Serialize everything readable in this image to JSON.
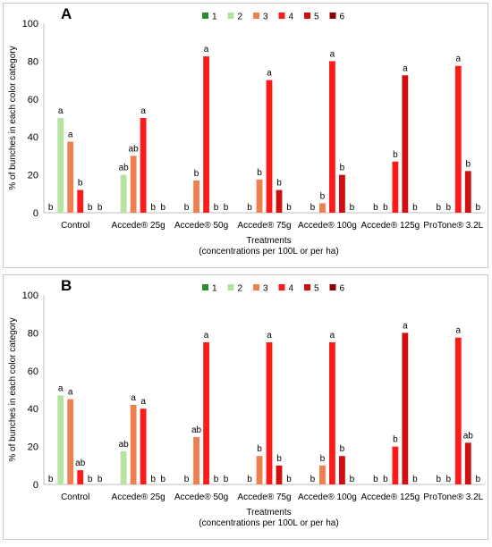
{
  "colors": {
    "1": "#2e8b2e",
    "2": "#b5e3a0",
    "3": "#f07f50",
    "4": "#ff1a1a",
    "5": "#d01010",
    "6": "#8b0000"
  },
  "chart_data": [
    {
      "type": "bar",
      "panel_label": "A",
      "title": "",
      "categories": [
        "Control",
        "Accede® 25g",
        "Accede® 50g",
        "Accede® 75g",
        "Accede® 100g",
        "Accede® 125g",
        "ProTone® 3.2L"
      ],
      "xlabel": "Treatments",
      "xlabel_sub": "(concentrations per 100L or per ha)",
      "ylabel": "% of bunches  in each color category",
      "ylim": [
        0,
        100
      ],
      "yticks": [
        0,
        20,
        40,
        60,
        80,
        100
      ],
      "legend_position": "top",
      "series": [
        {
          "name": "1",
          "values": [
            0,
            0,
            0,
            0,
            0,
            0,
            0
          ],
          "labels": [
            "b",
            "",
            "",
            "",
            "",
            "",
            ""
          ]
        },
        {
          "name": "2",
          "values": [
            50,
            20,
            0,
            0,
            0,
            0,
            0
          ],
          "labels": [
            "a",
            "ab",
            "b",
            "b",
            "b",
            "b",
            "b"
          ]
        },
        {
          "name": "3",
          "values": [
            37.5,
            30,
            17,
            17.5,
            5,
            0,
            0
          ],
          "labels": [
            "a",
            "ab",
            "b",
            "b",
            "b",
            "b",
            "b"
          ]
        },
        {
          "name": "4",
          "values": [
            12,
            50,
            82.5,
            70,
            80,
            27,
            77.5
          ],
          "labels": [
            "b",
            "a",
            "a",
            "a",
            "a",
            "b",
            "a"
          ]
        },
        {
          "name": "5",
          "values": [
            0,
            0,
            0,
            12,
            20,
            72.5,
            22
          ],
          "labels": [
            "b",
            "b",
            "b",
            "b",
            "b",
            "a",
            "b"
          ]
        },
        {
          "name": "6",
          "values": [
            0,
            0,
            0,
            0,
            0,
            0,
            0
          ],
          "labels": [
            "b",
            "b",
            "b",
            "b",
            "b",
            "b",
            "b"
          ]
        }
      ]
    },
    {
      "type": "bar",
      "panel_label": "B",
      "title": "",
      "categories": [
        "Control",
        "Accede® 25g",
        "Accede® 50g",
        "Accede® 75g",
        "Accede® 100g",
        "Accede® 125g",
        "ProTone® 3.2L"
      ],
      "xlabel": "Treatments",
      "xlabel_sub": "(concentrations per 100L or per ha)",
      "ylabel": "% of bunches  in each color category",
      "ylim": [
        0,
        100
      ],
      "yticks": [
        0,
        20,
        40,
        60,
        80,
        100
      ],
      "legend_position": "top",
      "series": [
        {
          "name": "1",
          "values": [
            0,
            0,
            0,
            0,
            0,
            0,
            0
          ],
          "labels": [
            "b",
            "",
            "",
            "",
            "",
            "",
            ""
          ]
        },
        {
          "name": "2",
          "values": [
            47,
            17.5,
            0,
            0,
            0,
            0,
            0
          ],
          "labels": [
            "a",
            "ab",
            "b",
            "b",
            "b",
            "b",
            "b"
          ]
        },
        {
          "name": "3",
          "values": [
            45,
            42,
            25,
            15,
            10,
            0,
            0
          ],
          "labels": [
            "a",
            "a",
            "ab",
            "b",
            "b",
            "b",
            "b"
          ]
        },
        {
          "name": "4",
          "values": [
            7.5,
            40,
            75,
            75,
            75,
            20,
            77.5
          ],
          "labels": [
            "ab",
            "a",
            "a",
            "a",
            "a",
            "b",
            "a"
          ]
        },
        {
          "name": "5",
          "values": [
            0,
            0,
            0,
            10,
            15,
            80,
            22
          ],
          "labels": [
            "b",
            "b",
            "b",
            "b",
            "b",
            "a",
            "ab"
          ]
        },
        {
          "name": "6",
          "values": [
            0,
            0,
            0,
            0,
            0,
            0,
            0
          ],
          "labels": [
            "b",
            "b",
            "b",
            "b",
            "b",
            "b",
            "b"
          ]
        }
      ]
    }
  ]
}
